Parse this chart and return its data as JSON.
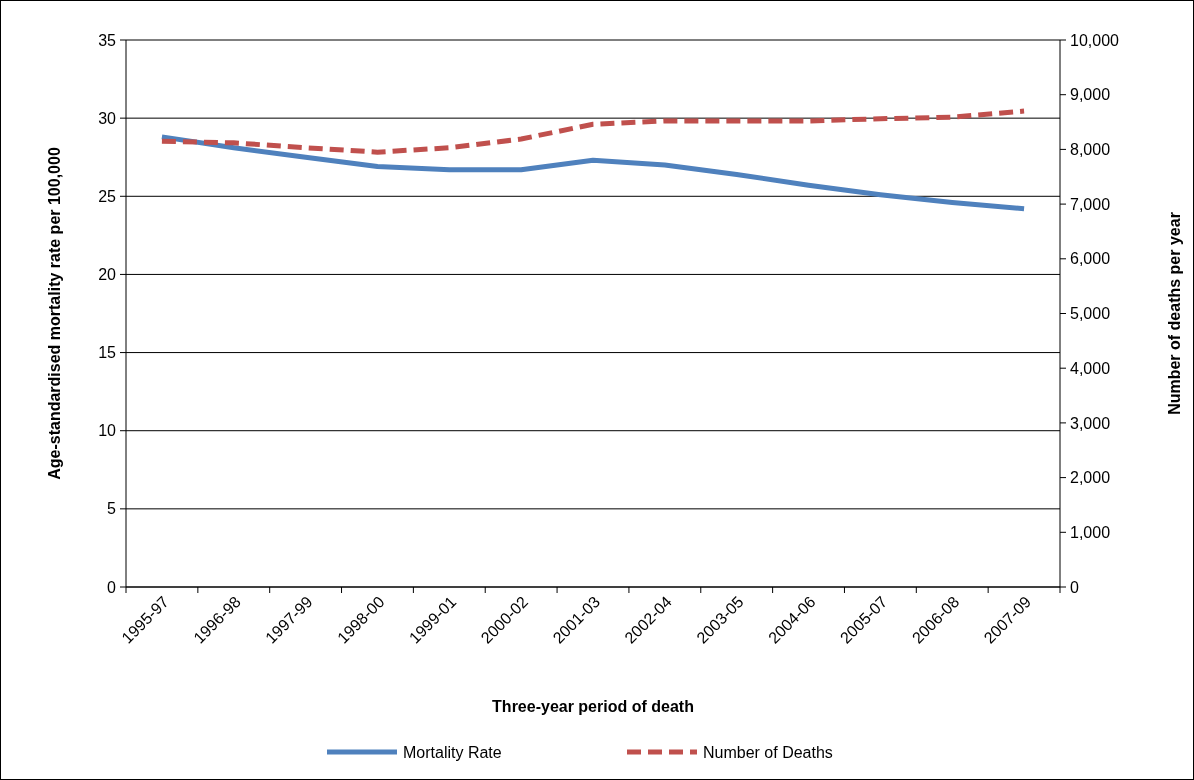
{
  "chart_data": {
    "type": "line",
    "xlabel": "Three-year period of death",
    "ylabel": "Age-standardised mortality rate per 100,000",
    "y2label": "Number of deaths per year",
    "categories": [
      "1995-97",
      "1996-98",
      "1997-99",
      "1998-00",
      "1999-01",
      "2000-02",
      "2001-03",
      "2002-04",
      "2003-05",
      "2004-06",
      "2005-07",
      "2006-08",
      "2007-09"
    ],
    "series": [
      {
        "name": "Mortality Rate",
        "color": "#4f81bd",
        "line_style": "solid",
        "values": [
          28.8,
          28.1,
          27.5,
          26.9,
          26.7,
          26.7,
          27.3,
          27.0,
          26.4,
          25.7,
          25.1,
          24.6,
          24.2
        ]
      },
      {
        "name": "Number of Deaths",
        "color": "#c0504d",
        "line_style": "dashed",
        "axis": "y2",
        "values": [
          8150,
          8120,
          8030,
          7950,
          8030,
          8190,
          8460,
          8520,
          8520,
          8520,
          8560,
          8590,
          8700
        ]
      }
    ],
    "ylim": [
      0,
      35
    ],
    "yticks": [
      0,
      5,
      10,
      15,
      20,
      25,
      30,
      35
    ],
    "y2lim": [
      0,
      10000
    ],
    "y2ticks": [
      0,
      {
        "value": 1000,
        "label": "1,000"
      },
      {
        "value": 2000,
        "label": "2,000"
      },
      {
        "value": 3000,
        "label": "3,000"
      },
      {
        "value": 4000,
        "label": "4,000"
      },
      {
        "value": 5000,
        "label": "5,000"
      },
      {
        "value": 6000,
        "label": "6,000"
      },
      {
        "value": 7000,
        "label": "7,000"
      },
      {
        "value": 8000,
        "label": "8,000"
      },
      {
        "value": 9000,
        "label": "9,000"
      },
      {
        "value": 10000,
        "label": "10,000"
      }
    ],
    "grid": "y",
    "legend": "bottom",
    "marker": "none"
  }
}
